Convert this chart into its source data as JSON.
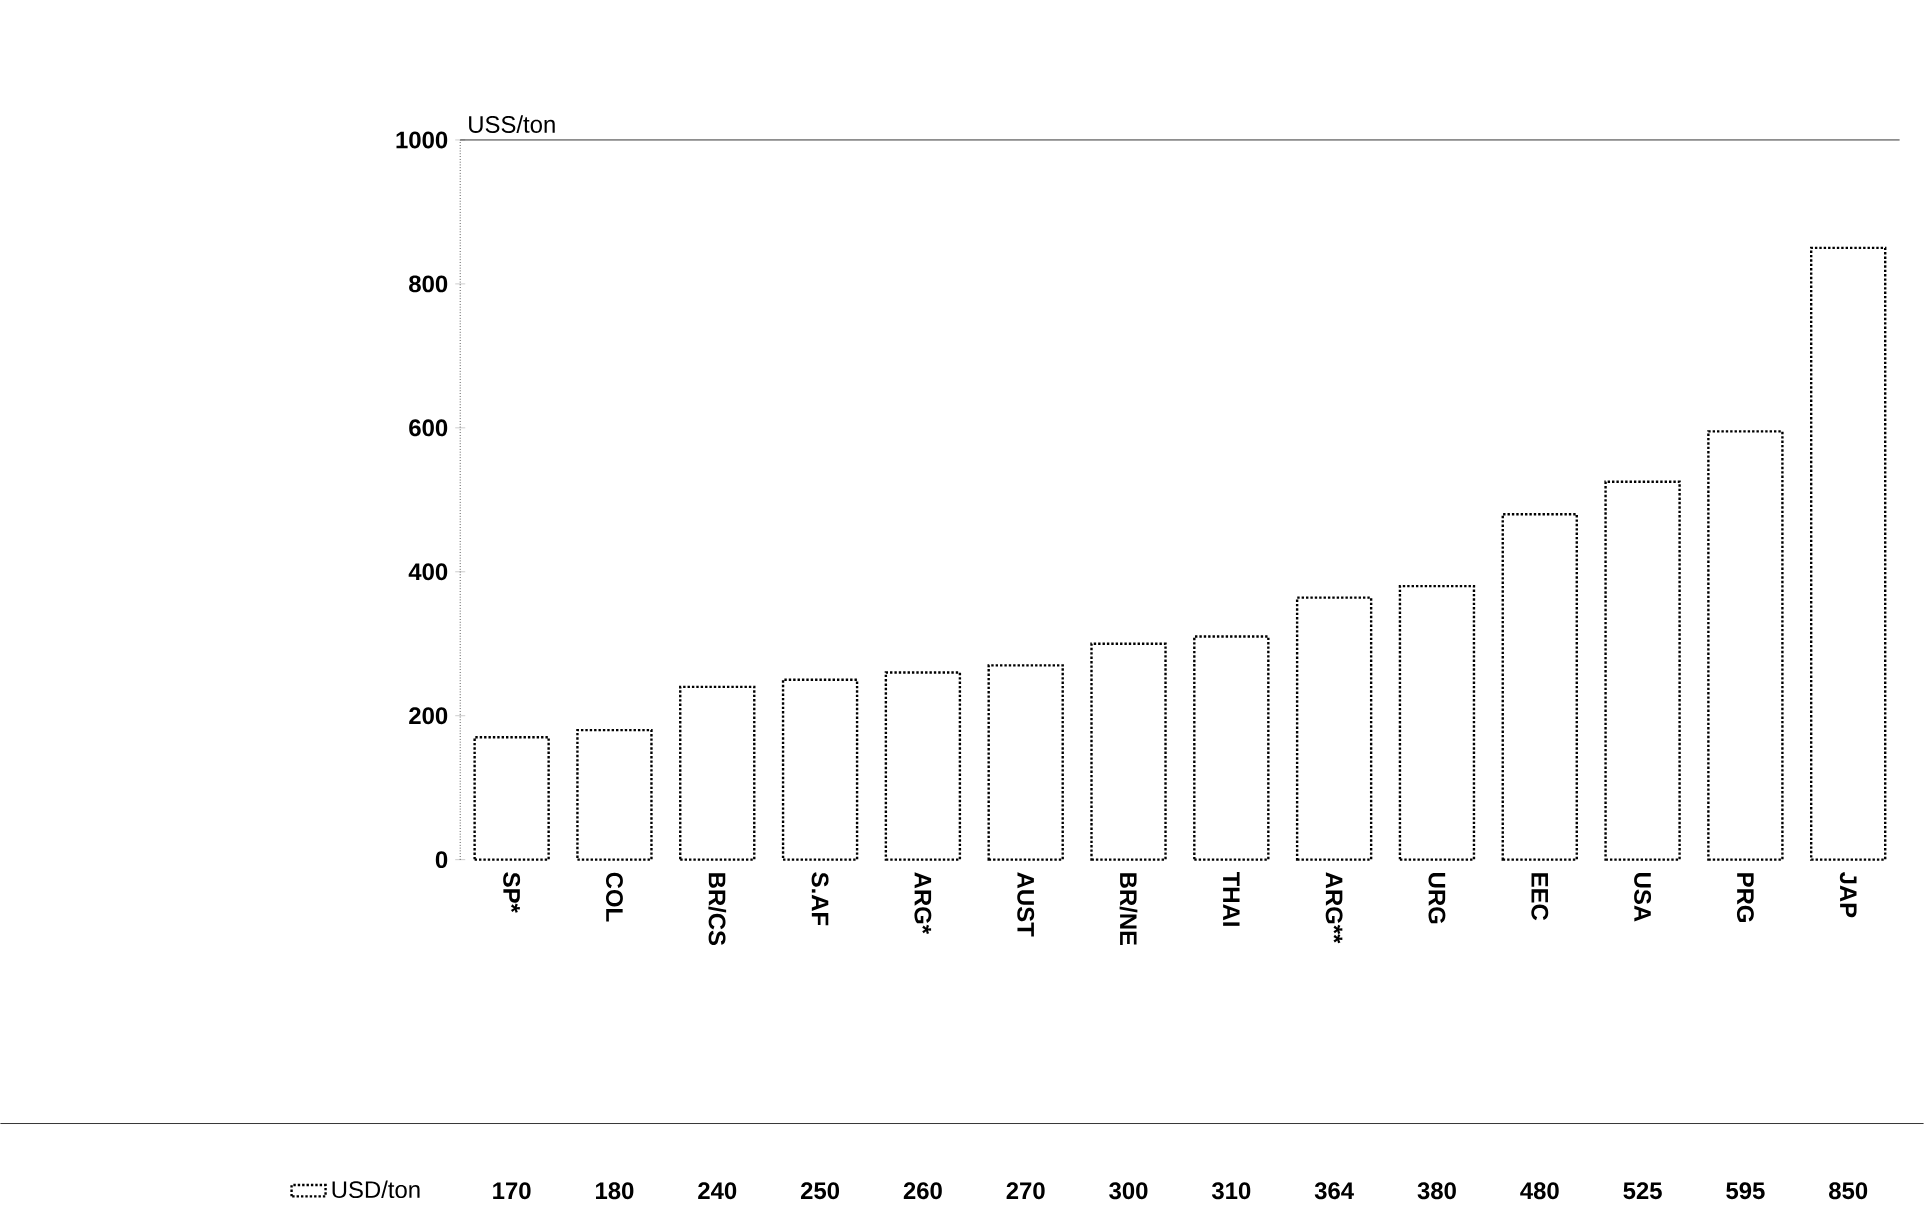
{
  "chart_data": {
    "type": "bar",
    "ylabel": "USS/ton",
    "categories": [
      "SP*",
      "COL",
      "BR/CS",
      "S.AF",
      "ARG*",
      "AUST",
      "BR/NE",
      "THAI",
      "ARG**",
      "URG",
      "EEC",
      "USA",
      "PRG",
      "JAP"
    ],
    "series": [
      {
        "name": "USD/ton",
        "color": "#000000",
        "values": [
          170,
          180,
          240,
          250,
          260,
          270,
          300,
          310,
          364,
          380,
          480,
          525,
          595,
          850
        ]
      }
    ],
    "ylim": [
      0,
      1000
    ],
    "yticks": [
      0,
      200,
      400,
      600,
      800,
      1000
    ],
    "data_labels": true,
    "legend": "bottom left",
    "grid": false
  }
}
